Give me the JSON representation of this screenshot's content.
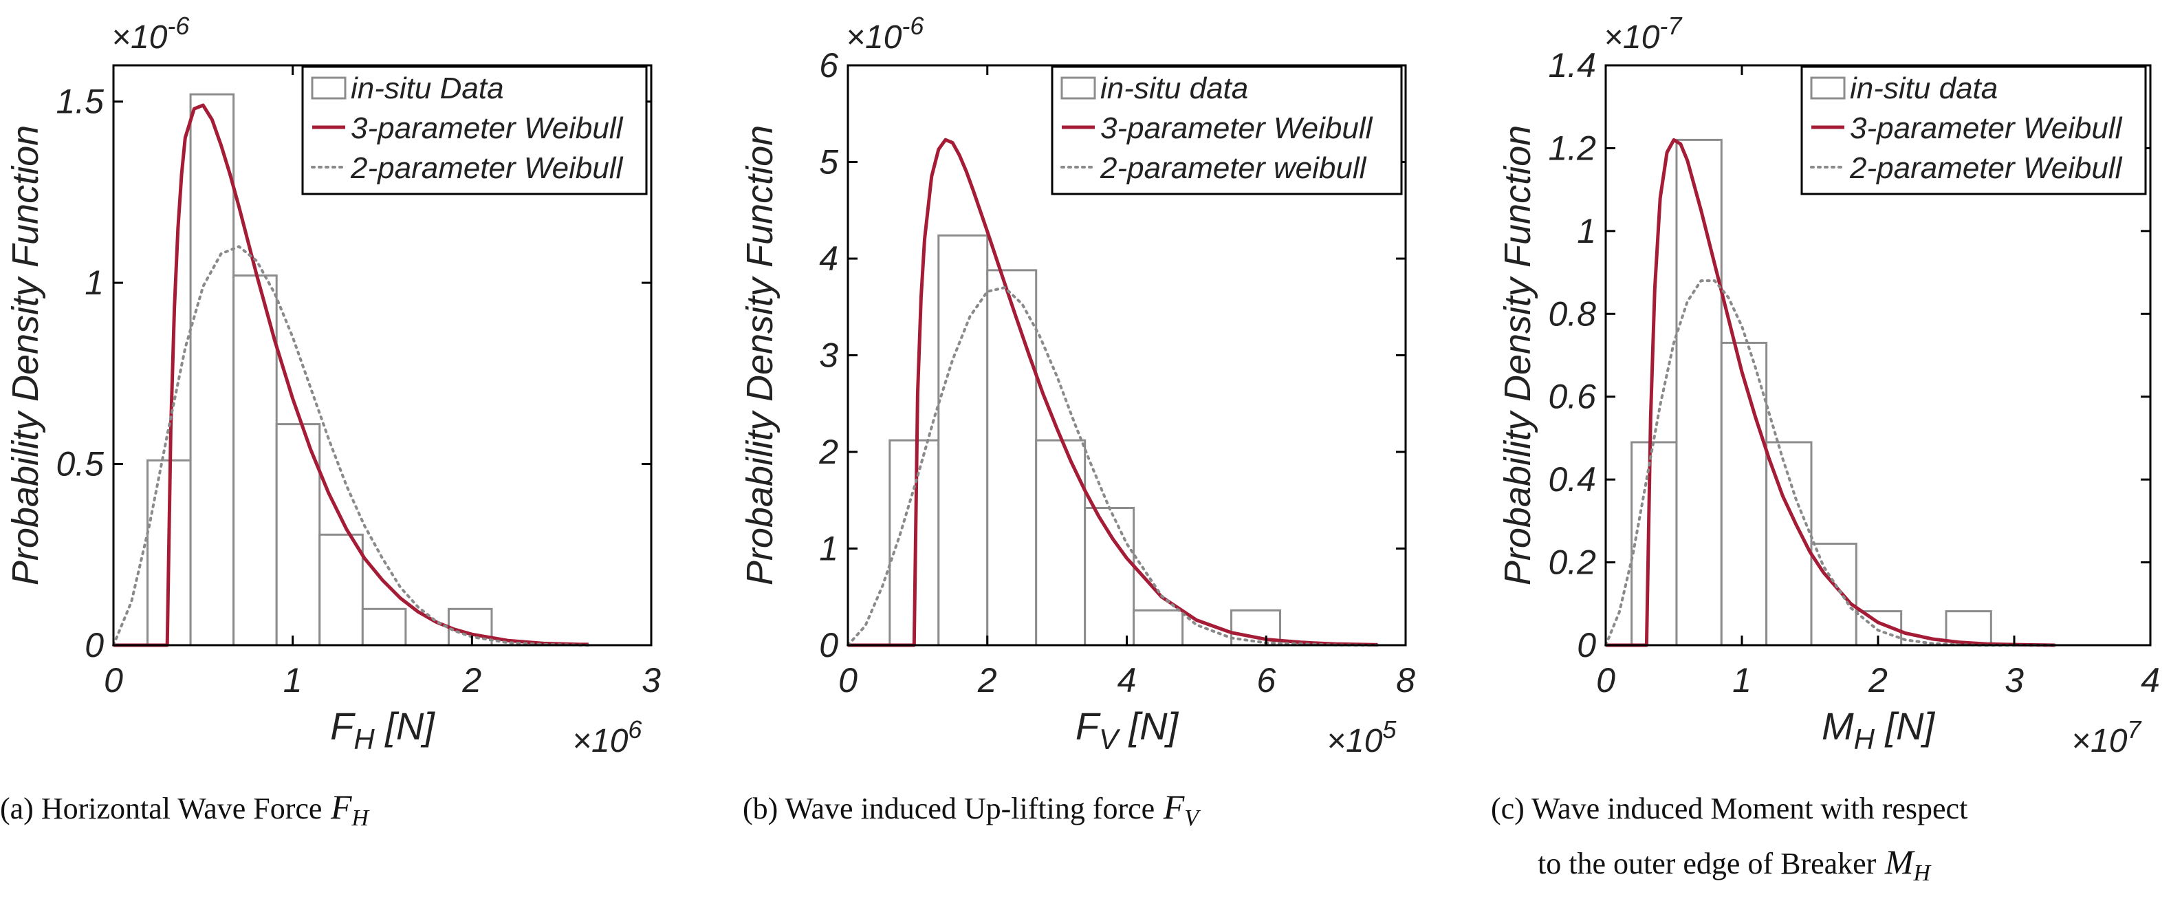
{
  "chart_data": [
    {
      "type": "bar",
      "title": "",
      "caption": {
        "label": "(a)",
        "lines": [
          "Horizontal Wave Force"
        ],
        "symbol": {
          "base": "F",
          "sub": "H"
        }
      },
      "xlabel": {
        "base": "F",
        "sub": "H",
        "unit": "[N]"
      },
      "ylabel": "Probability Density Function",
      "x_multiplier": {
        "base": "×10",
        "exp": "6"
      },
      "y_multiplier": {
        "base": "×10",
        "exp": "-6"
      },
      "xlim": [
        0,
        3
      ],
      "ylim": [
        0,
        1.6
      ],
      "xticks": [
        0,
        1,
        2,
        3
      ],
      "xtick_labels": [
        "0",
        "1",
        "2",
        "3"
      ],
      "yticks": [
        0,
        0.5,
        1,
        1.5
      ],
      "ytick_labels": [
        "0",
        "0.5",
        "1",
        "1.5"
      ],
      "grid": false,
      "legend_position": "top-right",
      "legend": [
        "in-situ Data",
        "3-parameter Weibull",
        "2-parameter Weibull"
      ],
      "histogram": {
        "bin_edges": [
          0.19,
          0.43,
          0.67,
          0.91,
          1.15,
          1.39,
          1.63,
          1.87,
          2.11
        ],
        "values": [
          0.51,
          1.52,
          1.02,
          0.61,
          0.305,
          0.1,
          0,
          0.1
        ]
      },
      "series": [
        {
          "name": "3-parameter Weibull",
          "style": "solid",
          "color": "#a51c36",
          "x": [
            0,
            0.3,
            0.32,
            0.34,
            0.36,
            0.38,
            0.4,
            0.45,
            0.5,
            0.55,
            0.6,
            0.65,
            0.7,
            0.8,
            0.9,
            1.0,
            1.1,
            1.2,
            1.3,
            1.4,
            1.5,
            1.6,
            1.7,
            1.8,
            1.9,
            2.0,
            2.2,
            2.4,
            2.6,
            2.65
          ],
          "values": [
            0,
            0,
            0.6,
            0.93,
            1.15,
            1.3,
            1.4,
            1.48,
            1.49,
            1.45,
            1.38,
            1.3,
            1.21,
            1.02,
            0.84,
            0.68,
            0.54,
            0.42,
            0.32,
            0.24,
            0.18,
            0.13,
            0.092,
            0.064,
            0.044,
            0.03,
            0.013,
            0.005,
            0.002,
            0.002
          ]
        },
        {
          "name": "2-parameter Weibull",
          "style": "dotted",
          "color": "#8a8a8a",
          "x": [
            0,
            0.1,
            0.2,
            0.3,
            0.4,
            0.5,
            0.6,
            0.7,
            0.8,
            0.9,
            1.0,
            1.1,
            1.2,
            1.3,
            1.4,
            1.5,
            1.6,
            1.7,
            1.8,
            1.9,
            2.0,
            2.2,
            2.4,
            2.65
          ],
          "values": [
            0,
            0.12,
            0.33,
            0.58,
            0.82,
            0.99,
            1.08,
            1.1,
            1.06,
            0.97,
            0.85,
            0.71,
            0.57,
            0.44,
            0.33,
            0.24,
            0.16,
            0.105,
            0.066,
            0.04,
            0.023,
            0.007,
            0.002,
            0.0
          ]
        }
      ]
    },
    {
      "type": "bar",
      "title": "",
      "caption": {
        "label": "(b)",
        "lines": [
          "Wave induced Up-lifting force"
        ],
        "symbol": {
          "base": "F",
          "sub": "V"
        }
      },
      "xlabel": {
        "base": "F",
        "sub": "V",
        "unit": "[N]"
      },
      "ylabel": "Probability Density Function",
      "x_multiplier": {
        "base": "×10",
        "exp": "5"
      },
      "y_multiplier": {
        "base": "×10",
        "exp": "-6"
      },
      "xlim": [
        0,
        8
      ],
      "ylim": [
        0,
        6
      ],
      "xticks": [
        0,
        2,
        4,
        6,
        8
      ],
      "xtick_labels": [
        "0",
        "2",
        "4",
        "6",
        "8"
      ],
      "yticks": [
        0,
        1,
        2,
        3,
        4,
        5,
        6
      ],
      "ytick_labels": [
        "0",
        "1",
        "2",
        "3",
        "4",
        "5",
        "6"
      ],
      "grid": false,
      "legend_position": "top-right",
      "legend": [
        "in-situ data",
        "3-parameter Weibull",
        "2-parameter weibull"
      ],
      "histogram": {
        "bin_edges": [
          0.6,
          1.3,
          2.0,
          2.7,
          3.4,
          4.1,
          4.8,
          5.5,
          6.2
        ],
        "values": [
          2.12,
          4.24,
          3.88,
          2.12,
          1.42,
          0.36,
          0,
          0.36
        ]
      },
      "series": [
        {
          "name": "3-parameter Weibull",
          "style": "solid",
          "color": "#a51c36",
          "x": [
            0,
            0.95,
            1.0,
            1.05,
            1.1,
            1.2,
            1.3,
            1.4,
            1.5,
            1.6,
            1.7,
            1.8,
            2.0,
            2.2,
            2.4,
            2.6,
            2.8,
            3.0,
            3.2,
            3.4,
            3.6,
            3.8,
            4.0,
            4.5,
            5.0,
            5.5,
            6.0,
            6.5,
            7.0,
            7.6
          ],
          "values": [
            0,
            0,
            2.6,
            3.6,
            4.2,
            4.85,
            5.13,
            5.23,
            5.2,
            5.07,
            4.9,
            4.7,
            4.28,
            3.85,
            3.42,
            3.0,
            2.6,
            2.24,
            1.9,
            1.6,
            1.33,
            1.1,
            0.9,
            0.5,
            0.26,
            0.13,
            0.06,
            0.03,
            0.012,
            0.004
          ]
        },
        {
          "name": "2-parameter weibull",
          "style": "dotted",
          "color": "#8a8a8a",
          "x": [
            0,
            0.25,
            0.5,
            0.75,
            1.0,
            1.25,
            1.5,
            1.75,
            2.0,
            2.25,
            2.5,
            2.75,
            3.0,
            3.25,
            3.5,
            3.75,
            4.0,
            4.5,
            5.0,
            5.5,
            6.0,
            7.0,
            7.6
          ],
          "values": [
            0,
            0.2,
            0.62,
            1.15,
            1.75,
            2.38,
            2.95,
            3.4,
            3.66,
            3.7,
            3.53,
            3.2,
            2.78,
            2.3,
            1.85,
            1.42,
            1.05,
            0.51,
            0.21,
            0.075,
            0.024,
            0.002,
            0.0
          ]
        }
      ]
    },
    {
      "type": "bar",
      "title": "",
      "caption": {
        "label": "(c)",
        "lines": [
          "Wave induced Moment with respect",
          "to the outer edge of Breaker"
        ],
        "symbol": {
          "base": "M",
          "sub": "H"
        }
      },
      "xlabel": {
        "base": "M",
        "sub": "H",
        "unit": "[N]"
      },
      "ylabel": "Probability Density Function",
      "x_multiplier": {
        "base": "×10",
        "exp": "7"
      },
      "y_multiplier": {
        "base": "×10",
        "exp": "-7"
      },
      "xlim": [
        0,
        4
      ],
      "ylim": [
        0,
        1.4
      ],
      "xticks": [
        0,
        1,
        2,
        3,
        4
      ],
      "xtick_labels": [
        "0",
        "1",
        "2",
        "3",
        "4"
      ],
      "yticks": [
        0,
        0.2,
        0.4,
        0.6,
        0.8,
        1.0,
        1.2,
        1.4
      ],
      "ytick_labels": [
        "0",
        "0.2",
        "0.4",
        "0.6",
        "0.8",
        "1",
        "1.2",
        "1.4"
      ],
      "grid": false,
      "legend_position": "top-right",
      "legend": [
        "in-situ data",
        "3-parameter Weibull",
        "2-parameter Weibull"
      ],
      "histogram": {
        "bin_edges": [
          0.19,
          0.52,
          0.85,
          1.18,
          1.51,
          1.84,
          2.17,
          2.5,
          2.83
        ],
        "values": [
          0.49,
          1.22,
          0.73,
          0.49,
          0.245,
          0.082,
          0,
          0.082
        ]
      },
      "series": [
        {
          "name": "3-parameter Weibull",
          "style": "solid",
          "color": "#a51c36",
          "x": [
            0,
            0.3,
            0.33,
            0.36,
            0.4,
            0.45,
            0.5,
            0.55,
            0.6,
            0.7,
            0.8,
            0.9,
            1.0,
            1.1,
            1.2,
            1.3,
            1.4,
            1.5,
            1.6,
            1.8,
            2.0,
            2.2,
            2.4,
            2.6,
            2.8,
            3.0,
            3.3
          ],
          "values": [
            0,
            0,
            0.55,
            0.86,
            1.08,
            1.19,
            1.22,
            1.21,
            1.17,
            1.05,
            0.92,
            0.79,
            0.66,
            0.55,
            0.45,
            0.36,
            0.29,
            0.225,
            0.175,
            0.1,
            0.055,
            0.029,
            0.015,
            0.007,
            0.003,
            0.0015,
            0.0
          ]
        },
        {
          "name": "2-parameter Weibull",
          "style": "dotted",
          "color": "#8a8a8a",
          "x": [
            0,
            0.1,
            0.2,
            0.3,
            0.4,
            0.5,
            0.6,
            0.7,
            0.8,
            0.9,
            1.0,
            1.1,
            1.2,
            1.3,
            1.4,
            1.6,
            1.8,
            2.0,
            2.2,
            2.4,
            2.6,
            2.8,
            3.3
          ],
          "values": [
            0,
            0.08,
            0.22,
            0.4,
            0.58,
            0.73,
            0.83,
            0.88,
            0.88,
            0.84,
            0.77,
            0.67,
            0.56,
            0.45,
            0.35,
            0.19,
            0.09,
            0.036,
            0.013,
            0.004,
            0.001,
            0.0,
            0.0
          ]
        }
      ]
    }
  ]
}
